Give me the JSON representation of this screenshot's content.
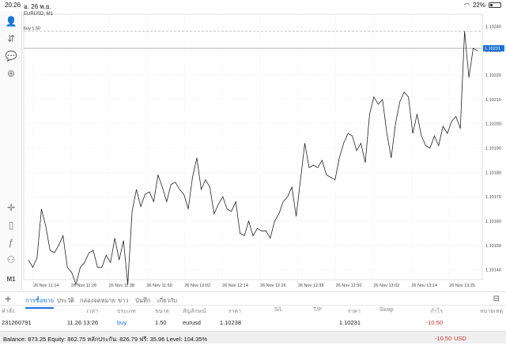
{
  "status_bar": {
    "time": "20:26",
    "date": "อ. 26 พ.ย.",
    "battery": "22%",
    "battery_fraction": 0.22
  },
  "left_toolbar": {
    "items": [
      {
        "name": "account-icon",
        "glyph": "👤"
      },
      {
        "name": "trade-icon",
        "glyph": "⇵"
      },
      {
        "name": "chat-icon",
        "glyph": "💬"
      },
      {
        "name": "new-order-icon",
        "glyph": "⊕"
      },
      {
        "name": "crosshair-icon",
        "glyph": "✛"
      },
      {
        "name": "chart-type-icon",
        "glyph": "▯"
      },
      {
        "name": "indicators-icon",
        "glyph": "ƒ"
      },
      {
        "name": "objects-icon",
        "glyph": "⚇"
      },
      {
        "name": "timeframe-label",
        "glyph": "M1"
      }
    ]
  },
  "chart": {
    "symbol": "EURUSD, M1",
    "order_line_label": "buy 1.50",
    "order_price": 1.10238,
    "current_price": 1.10231,
    "current_price_label": "1.10231",
    "colors": {
      "line": "#222222",
      "grid": "#dcdcdc",
      "price_line": "#999999",
      "price_box": "#1f6fd6",
      "order_line": "#aaaaaa"
    }
  },
  "chart_data": {
    "type": "line",
    "ylim": [
      1.10136,
      1.10245
    ],
    "y_ticks": [
      "1.10240",
      "1.10230",
      "1.10220",
      "1.10210",
      "1.10200",
      "1.10190",
      "1.10180",
      "1.10170",
      "1.10160",
      "1.10150",
      "1.10140"
    ],
    "x_ticks": [
      "26 Nov 11:14",
      "26 Nov 11:26",
      "26 Nov 11:38",
      "26 Nov 11:50",
      "26 Nov 12:02",
      "26 Nov 12:14",
      "26 Nov 12:26",
      "26 Nov 12:38",
      "26 Nov 12:50",
      "26 Nov 13:02",
      "26 Nov 13:14",
      "26 Nov 13:26"
    ],
    "values": [
      1.10144,
      1.10141,
      1.10145,
      1.10165,
      1.10158,
      1.10148,
      1.10147,
      1.1015,
      1.10154,
      1.10141,
      1.10139,
      1.10134,
      1.10141,
      1.10143,
      1.10147,
      1.10148,
      1.10141,
      1.10141,
      1.10146,
      1.10143,
      1.10153,
      1.10144,
      1.10152,
      1.10134,
      1.10164,
      1.10173,
      1.10166,
      1.10171,
      1.10172,
      1.10168,
      1.10179,
      1.10174,
      1.10168,
      1.10175,
      1.10176,
      1.10173,
      1.10171,
      1.10165,
      1.10178,
      1.10186,
      1.10173,
      1.10177,
      1.10174,
      1.10163,
      1.10167,
      1.1017,
      1.10165,
      1.10164,
      1.10168,
      1.10155,
      1.10154,
      1.1016,
      1.10154,
      1.10157,
      1.10156,
      1.10156,
      1.10153,
      1.1016,
      1.10163,
      1.10168,
      1.1017,
      1.10174,
      1.10162,
      1.10177,
      1.10192,
      1.10182,
      1.10183,
      1.10182,
      1.10185,
      1.10179,
      1.10178,
      1.10177,
      1.10186,
      1.10192,
      1.10196,
      1.10195,
      1.10189,
      1.10192,
      1.10184,
      1.10204,
      1.10211,
      1.10208,
      1.1021,
      1.10196,
      1.10186,
      1.102,
      1.10209,
      1.10213,
      1.10211,
      1.10196,
      1.10204,
      1.10195,
      1.10191,
      1.1019,
      1.10195,
      1.10191,
      1.10199,
      1.10196,
      1.10201,
      1.10203,
      1.10198,
      1.10238,
      1.10219,
      1.10231,
      1.1023
    ]
  },
  "tabs": {
    "items": [
      {
        "label": "การซื้อขาย",
        "active": true
      },
      {
        "label": "ประวัติ",
        "active": false
      },
      {
        "label": "กล่องจดหมาย",
        "active": false
      },
      {
        "label": "ข่าว",
        "active": false
      },
      {
        "label": "บันทึก",
        "active": false
      },
      {
        "label": "เกี่ยวกับ",
        "active": false
      }
    ]
  },
  "positions": {
    "columns": [
      {
        "label": "คำสั่ง",
        "x": 2,
        "align": "left"
      },
      {
        "label": "เวลา",
        "x": 124,
        "align": "right"
      },
      {
        "label": "ประเภท",
        "x": 148,
        "align": "left"
      },
      {
        "label": "ขนาด",
        "x": 196,
        "align": "left"
      },
      {
        "label": "สัญลักษณ์",
        "x": 231,
        "align": "left"
      },
      {
        "label": "ราคา",
        "x": 305,
        "align": "right"
      },
      {
        "label": "S/L",
        "x": 347,
        "align": "left"
      },
      {
        "label": "T/P",
        "x": 396,
        "align": "left"
      },
      {
        "label": "ราคา",
        "x": 456,
        "align": "right"
      },
      {
        "label": "Swap",
        "x": 480,
        "align": "left"
      },
      {
        "label": "กำไร",
        "x": 560,
        "align": "right"
      },
      {
        "label": "หมายเหตุ",
        "x": 636,
        "align": "right"
      }
    ],
    "rows": [
      {
        "order": "231260791",
        "time": "11.26 13:26",
        "type": "buy",
        "size": "1.50",
        "symbol": "eurusd",
        "open_price": "1.10238",
        "sl": "",
        "tp": "",
        "price": "1.10231",
        "swap": "",
        "profit": "-10.50",
        "comment": ""
      }
    ]
  },
  "balance_bar": {
    "text": "Balance: 873.25 Equity: 862.75 หลักประกัน: 826.79 ฟรี: 35.96 Level: 104.35%",
    "profit": "-10.50",
    "currency": "USD"
  }
}
